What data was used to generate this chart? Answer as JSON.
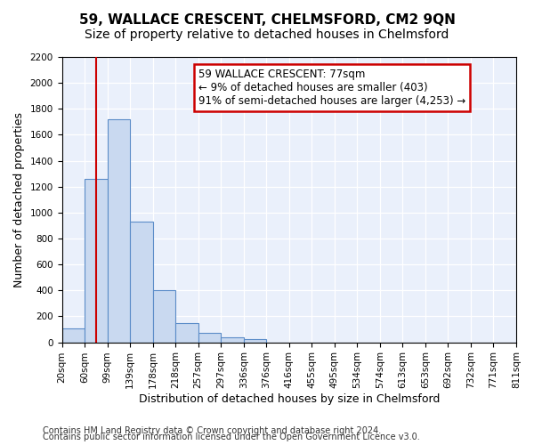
{
  "title": "59, WALLACE CRESCENT, CHELMSFORD, CM2 9QN",
  "subtitle": "Size of property relative to detached houses in Chelmsford",
  "xlabel": "Distribution of detached houses by size in Chelmsford",
  "ylabel": "Number of detached properties",
  "bar_values": [
    110,
    1260,
    1720,
    930,
    400,
    150,
    70,
    35,
    25,
    0,
    0,
    0,
    0,
    0,
    0,
    0,
    0,
    0,
    0,
    0
  ],
  "bin_labels": [
    "20sqm",
    "60sqm",
    "99sqm",
    "139sqm",
    "178sqm",
    "218sqm",
    "257sqm",
    "297sqm",
    "336sqm",
    "376sqm",
    "416sqm",
    "455sqm",
    "495sqm",
    "534sqm",
    "574sqm",
    "613sqm",
    "653sqm",
    "692sqm",
    "732sqm",
    "771sqm",
    "811sqm"
  ],
  "bar_color": "#c9d9f0",
  "bar_edge_color": "#5b8cc8",
  "annotation_line1": "59 WALLACE CRESCENT: 77sqm",
  "annotation_line2": "← 9% of detached houses are smaller (403)",
  "annotation_line3": "91% of semi-detached houses are larger (4,253) →",
  "annotation_box_color": "#ffffff",
  "annotation_box_edge_color": "#cc0000",
  "vline_x": 1.0,
  "vline_color": "#cc0000",
  "ylim": [
    0,
    2200
  ],
  "yticks": [
    0,
    200,
    400,
    600,
    800,
    1000,
    1200,
    1400,
    1600,
    1800,
    2000,
    2200
  ],
  "footer_line1": "Contains HM Land Registry data © Crown copyright and database right 2024.",
  "footer_line2": "Contains public sector information licensed under the Open Government Licence v3.0.",
  "plot_bg_color": "#eaf0fb",
  "title_fontsize": 11,
  "subtitle_fontsize": 10,
  "axis_label_fontsize": 9,
  "tick_fontsize": 7.5,
  "annotation_fontsize": 8.5,
  "footer_fontsize": 7
}
